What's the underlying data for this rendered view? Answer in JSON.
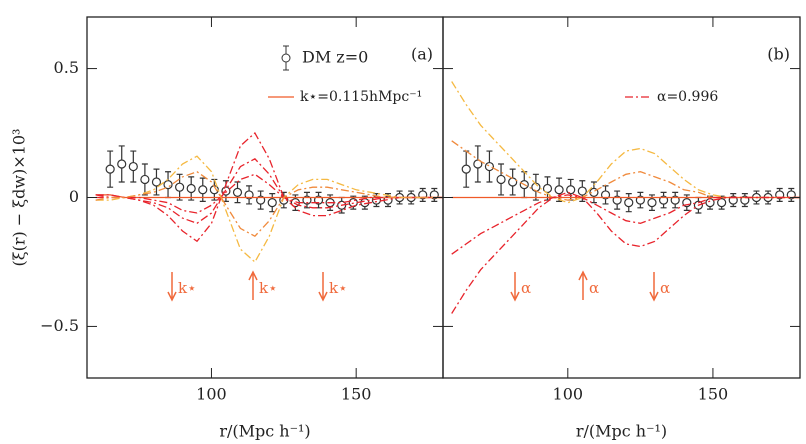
{
  "chart_data": [
    {
      "type": "line",
      "panel_label": "(a)",
      "ylabel": "(ξ(r) − ξdw)×10³",
      "xlabel": "r/(Mpc h⁻¹)",
      "xlim": [
        57,
        180
      ],
      "ylim": [
        -0.7,
        0.7
      ],
      "xticks": [
        100,
        150
      ],
      "yticks": [
        {
          "value": 0.5,
          "label": "0.5"
        },
        0,
        {
          "value": -0.5,
          "label": "−0.5"
        }
      ],
      "annotations": [
        {
          "text": "k⋆",
          "direction": "down"
        },
        {
          "text": "k⋆",
          "direction": "up"
        },
        {
          "text": "k⋆",
          "direction": "down"
        }
      ],
      "series": [
        {
          "name": "DM z=0",
          "style": "points",
          "color": "#333333",
          "x": [
            65,
            69,
            73,
            77,
            81,
            85,
            89,
            93,
            97,
            101,
            105,
            109,
            113,
            117,
            121,
            125,
            129,
            133,
            137,
            141,
            145,
            149,
            153,
            157,
            161,
            165,
            169,
            173,
            177
          ],
          "values": [
            0.11,
            0.13,
            0.12,
            0.07,
            0.06,
            0.05,
            0.04,
            0.035,
            0.03,
            0.03,
            0.025,
            0.02,
            0.01,
            -0.01,
            -0.02,
            -0.01,
            -0.02,
            -0.01,
            -0.01,
            -0.02,
            -0.03,
            -0.02,
            -0.02,
            -0.01,
            -0.01,
            0.0,
            0.0,
            0.01,
            0.01
          ],
          "errors": [
            0.07,
            0.07,
            0.06,
            0.06,
            0.05,
            0.05,
            0.05,
            0.045,
            0.045,
            0.04,
            0.04,
            0.04,
            0.035,
            0.035,
            0.035,
            0.03,
            0.03,
            0.03,
            0.03,
            0.03,
            0.03,
            0.025,
            0.025,
            0.025,
            0.025,
            0.025,
            0.025,
            0.025,
            0.025
          ]
        },
        {
          "name": "k⋆=0.115hMpc⁻¹",
          "style": "solid",
          "color": "#f05a28",
          "x": [
            60,
            65,
            70,
            75,
            80,
            85,
            90,
            95,
            100,
            105,
            110,
            115,
            120,
            125,
            130,
            135,
            140,
            145,
            150,
            155,
            160,
            165,
            170,
            175,
            180
          ],
          "values": [
            0.01,
            0.01,
            0,
            0,
            0,
            0,
            0,
            0,
            0,
            0,
            0,
            0,
            0,
            0,
            0,
            0,
            0,
            0,
            0,
            0,
            0,
            0,
            0,
            0,
            0
          ]
        },
        {
          "style": "dashdot",
          "color": "#e8242c",
          "x": [
            60,
            65,
            70,
            75,
            80,
            85,
            90,
            95,
            100,
            105,
            110,
            115,
            120,
            125,
            130,
            135,
            140,
            145,
            150,
            155,
            160,
            165,
            170,
            175,
            180
          ],
          "values": [
            0.01,
            0.01,
            0.0,
            -0.01,
            -0.03,
            -0.07,
            -0.13,
            -0.17,
            -0.1,
            0.05,
            0.2,
            0.25,
            0.15,
            0.0,
            -0.05,
            -0.07,
            -0.07,
            -0.05,
            -0.03,
            -0.02,
            -0.01,
            0,
            0,
            0,
            0
          ]
        },
        {
          "style": "dashdot",
          "color": "#e8242c",
          "x": [
            60,
            65,
            70,
            75,
            80,
            85,
            90,
            95,
            100,
            105,
            110,
            115,
            120,
            125,
            130,
            135,
            140,
            145,
            150,
            155,
            160,
            165,
            170,
            175,
            180
          ],
          "values": [
            0.01,
            0,
            0,
            -0.01,
            -0.02,
            -0.04,
            -0.08,
            -0.1,
            -0.06,
            0.03,
            0.12,
            0.15,
            0.09,
            0,
            -0.03,
            -0.04,
            -0.04,
            -0.03,
            -0.02,
            -0.01,
            0,
            0,
            0,
            0,
            0
          ]
        },
        {
          "style": "dashdot",
          "color": "#e8242c",
          "x": [
            60,
            65,
            70,
            75,
            80,
            85,
            90,
            95,
            100,
            105,
            110,
            115,
            120,
            125,
            130,
            135,
            140,
            145,
            150,
            155,
            160,
            165,
            170,
            175,
            180
          ],
          "values": [
            0,
            0,
            0,
            0,
            -0.01,
            -0.02,
            -0.05,
            -0.06,
            -0.03,
            0.02,
            0.07,
            0.09,
            0.05,
            0,
            -0.02,
            -0.02,
            -0.02,
            -0.02,
            -0.01,
            0,
            0,
            0,
            0,
            0,
            0
          ]
        },
        {
          "style": "dashdot",
          "color": "#f5b942",
          "x": [
            60,
            65,
            70,
            75,
            80,
            85,
            90,
            95,
            100,
            105,
            110,
            115,
            120,
            125,
            130,
            135,
            140,
            145,
            150,
            155,
            160,
            165,
            170,
            175,
            180
          ],
          "values": [
            -0.01,
            -0.01,
            0,
            0.01,
            0.03,
            0.07,
            0.13,
            0.16,
            0.1,
            -0.05,
            -0.2,
            -0.25,
            -0.15,
            0,
            0.05,
            0.07,
            0.07,
            0.05,
            0.03,
            0.02,
            0.01,
            0,
            0,
            0,
            0
          ]
        },
        {
          "style": "dashdot",
          "color": "#f08a3c",
          "x": [
            60,
            65,
            70,
            75,
            80,
            85,
            90,
            95,
            100,
            105,
            110,
            115,
            120,
            125,
            130,
            135,
            140,
            145,
            150,
            155,
            160,
            165,
            170,
            175,
            180
          ],
          "values": [
            -0.01,
            0,
            0,
            0.01,
            0.02,
            0.04,
            0.08,
            0.1,
            0.06,
            -0.03,
            -0.12,
            -0.15,
            -0.09,
            0,
            0.03,
            0.04,
            0.04,
            0.03,
            0.02,
            0.01,
            0,
            0,
            0,
            0,
            0
          ]
        }
      ]
    },
    {
      "type": "line",
      "panel_label": "(b)",
      "xlabel": "r/(Mpc h⁻¹)",
      "xlim": [
        57,
        180
      ],
      "ylim": [
        -0.7,
        0.7
      ],
      "xticks": [
        100,
        150
      ],
      "annotations": [
        {
          "text": "α",
          "direction": "down"
        },
        {
          "text": "α",
          "direction": "up"
        },
        {
          "text": "α",
          "direction": "down"
        }
      ],
      "series": [
        {
          "style": "points",
          "color": "#333333",
          "x": [
            65,
            69,
            73,
            77,
            81,
            85,
            89,
            93,
            97,
            101,
            105,
            109,
            113,
            117,
            121,
            125,
            129,
            133,
            137,
            141,
            145,
            149,
            153,
            157,
            161,
            165,
            169,
            173,
            177
          ],
          "values": [
            0.11,
            0.13,
            0.12,
            0.07,
            0.06,
            0.05,
            0.04,
            0.035,
            0.03,
            0.03,
            0.025,
            0.02,
            0.01,
            -0.01,
            -0.02,
            -0.01,
            -0.02,
            -0.01,
            -0.01,
            -0.02,
            -0.03,
            -0.02,
            -0.02,
            -0.01,
            -0.01,
            0.0,
            0.0,
            0.01,
            0.01
          ],
          "errors": [
            0.07,
            0.07,
            0.06,
            0.06,
            0.05,
            0.05,
            0.05,
            0.045,
            0.045,
            0.04,
            0.04,
            0.04,
            0.035,
            0.035,
            0.035,
            0.03,
            0.03,
            0.03,
            0.03,
            0.03,
            0.03,
            0.025,
            0.025,
            0.025,
            0.025,
            0.025,
            0.025,
            0.025,
            0.025
          ]
        },
        {
          "style": "solid",
          "color": "#f05a28",
          "x": [
            60,
            65,
            70,
            75,
            80,
            85,
            90,
            95,
            100,
            105,
            110,
            115,
            120,
            125,
            130,
            135,
            140,
            145,
            150,
            155,
            160,
            165,
            170,
            175,
            180
          ],
          "values": [
            0,
            0,
            0,
            0,
            0,
            0,
            0,
            0,
            0,
            0,
            0,
            0,
            0,
            0,
            0,
            0,
            0,
            0,
            0,
            0,
            0,
            0,
            0,
            0,
            0
          ]
        },
        {
          "style": "dashdot",
          "color": "#f5b942",
          "x": [
            60,
            65,
            70,
            75,
            80,
            85,
            90,
            95,
            100,
            105,
            110,
            115,
            120,
            125,
            130,
            135,
            140,
            145,
            150,
            155,
            160,
            165,
            170,
            175,
            180
          ],
          "values": [
            0.45,
            0.36,
            0.28,
            0.22,
            0.16,
            0.1,
            0.04,
            0.0,
            -0.02,
            0.0,
            0.06,
            0.13,
            0.18,
            0.19,
            0.17,
            0.12,
            0.07,
            0.03,
            0.01,
            0,
            0,
            0,
            0,
            0,
            0
          ]
        },
        {
          "style": "dashdot",
          "color": "#f08a3c",
          "x": [
            60,
            65,
            70,
            75,
            80,
            85,
            90,
            95,
            100,
            105,
            110,
            115,
            120,
            125,
            130,
            135,
            140,
            145,
            150,
            155,
            160,
            165,
            170,
            175,
            180
          ],
          "values": [
            0.22,
            0.18,
            0.14,
            0.11,
            0.08,
            0.05,
            0.02,
            0,
            -0.01,
            0,
            0.03,
            0.06,
            0.09,
            0.1,
            0.08,
            0.06,
            0.03,
            0.02,
            0,
            0,
            0,
            0,
            0,
            0,
            0
          ]
        },
        {
          "name": "α=0.996",
          "style": "dashdot",
          "color": "#e8242c",
          "x": [
            60,
            65,
            70,
            75,
            80,
            85,
            90,
            95,
            100,
            105,
            110,
            115,
            120,
            125,
            130,
            135,
            140,
            145,
            150,
            155,
            160,
            165,
            170,
            175,
            180
          ],
          "values": [
            -0.22,
            -0.18,
            -0.14,
            -0.11,
            -0.08,
            -0.05,
            -0.02,
            0,
            0.01,
            0,
            -0.03,
            -0.06,
            -0.09,
            -0.1,
            -0.08,
            -0.06,
            -0.03,
            -0.02,
            0,
            0,
            0,
            0,
            0,
            0,
            0
          ]
        },
        {
          "style": "dashdot",
          "color": "#e8242c",
          "x": [
            60,
            65,
            70,
            75,
            80,
            85,
            90,
            95,
            100,
            105,
            110,
            115,
            120,
            125,
            130,
            135,
            140,
            145,
            150,
            155,
            160,
            165,
            170,
            175,
            180
          ],
          "values": [
            -0.45,
            -0.36,
            -0.28,
            -0.22,
            -0.16,
            -0.1,
            -0.04,
            0,
            0.02,
            0,
            -0.06,
            -0.13,
            -0.18,
            -0.19,
            -0.17,
            -0.12,
            -0.07,
            -0.03,
            -0.01,
            0,
            0,
            0,
            0,
            0,
            0
          ]
        }
      ]
    }
  ]
}
